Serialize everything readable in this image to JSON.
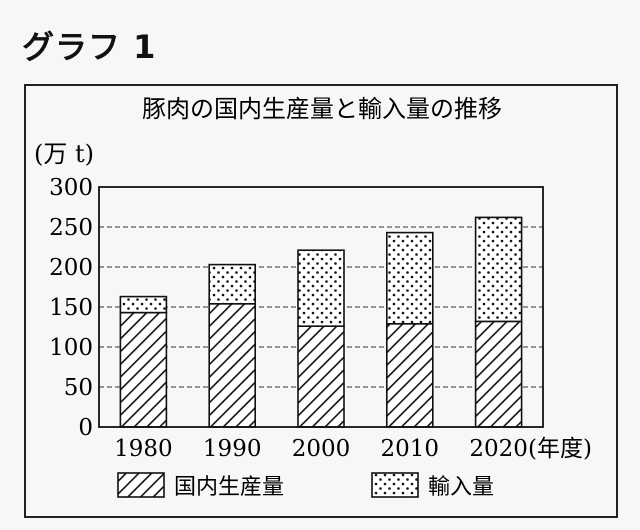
{
  "graph_label": "グラフ 1",
  "chart_data": {
    "type": "bar",
    "stacked": true,
    "title": "豚肉の国内生産量と輸入量の推移",
    "ylabel": "(万 t)",
    "xlabel": "(年度)",
    "categories": [
      "1980",
      "1990",
      "2000",
      "2010",
      "2020"
    ],
    "ylim": [
      0,
      300
    ],
    "yticks": [
      0,
      50,
      100,
      150,
      200,
      250,
      300
    ],
    "grid": true,
    "legend_position": "bottom",
    "series": [
      {
        "name": "国内生産量",
        "pattern": "diagonal-hatch",
        "values": [
          143,
          154,
          126,
          129,
          132
        ]
      },
      {
        "name": "輸入量",
        "pattern": "dots",
        "values": [
          20,
          49,
          95,
          114,
          130
        ]
      }
    ]
  }
}
